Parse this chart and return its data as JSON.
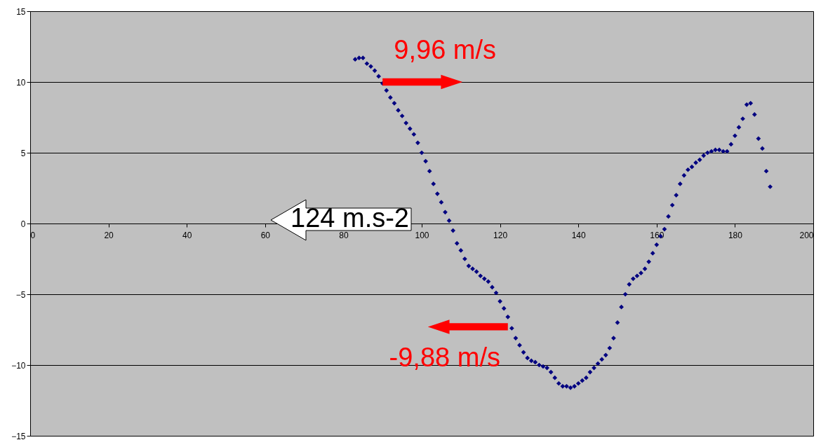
{
  "chart_data": {
    "type": "scatter",
    "x": [
      83,
      84,
      85,
      86,
      87,
      88,
      89,
      90,
      91,
      92,
      93,
      94,
      95,
      96,
      97,
      98,
      99,
      100,
      101,
      102,
      103,
      104,
      105,
      106,
      107,
      108,
      109,
      110,
      111,
      112,
      113,
      114,
      115,
      116,
      117,
      118,
      119,
      120,
      121,
      122,
      123,
      124,
      125,
      126,
      127,
      128,
      129,
      130,
      131,
      132,
      133,
      134,
      135,
      136,
      137,
      138,
      139,
      140,
      141,
      142,
      143,
      144,
      145,
      146,
      147,
      148,
      149,
      150,
      151,
      152,
      153,
      154,
      155,
      156,
      157,
      158,
      159,
      160,
      161,
      162,
      163,
      164,
      165,
      166,
      167,
      168,
      169,
      170,
      171,
      172,
      173,
      174,
      175,
      176,
      177,
      178,
      179,
      180,
      181,
      182,
      183,
      184,
      185,
      186,
      187,
      188,
      189
    ],
    "series": [
      {
        "color": "#000080",
        "values": [
          11.6,
          11.7,
          11.7,
          11.3,
          11.1,
          10.8,
          10.4,
          9.9,
          9.4,
          8.9,
          8.5,
          8.0,
          7.6,
          7.1,
          6.7,
          6.3,
          5.7,
          5.0,
          4.4,
          3.7,
          2.8,
          2.1,
          1.5,
          0.8,
          0.2,
          -0.5,
          -1.4,
          -1.9,
          -2.5,
          -3.0,
          -3.2,
          -3.4,
          -3.7,
          -3.9,
          -4.1,
          -4.5,
          -4.9,
          -5.5,
          -6.0,
          -6.6,
          -7.4,
          -8.1,
          -8.6,
          -9.1,
          -9.5,
          -9.7,
          -9.8,
          -10.0,
          -10.1,
          -10.2,
          -10.5,
          -10.9,
          -11.3,
          -11.5,
          -11.5,
          -11.6,
          -11.5,
          -11.3,
          -11.1,
          -10.9,
          -10.5,
          -10.2,
          -9.9,
          -9.6,
          -9.3,
          -8.8,
          -8.1,
          -7.0,
          -5.9,
          -5.0,
          -4.3,
          -3.9,
          -3.7,
          -3.5,
          -3.2,
          -2.7,
          -2.1,
          -1.5,
          -0.9,
          -0.4,
          0.5,
          1.3,
          2.0,
          2.8,
          3.4,
          3.8,
          4.0,
          4.3,
          4.5,
          4.8,
          5.0,
          5.1,
          5.2,
          5.2,
          5.1,
          5.1,
          5.6,
          6.2,
          6.8,
          7.4,
          8.4,
          8.5,
          7.7,
          6.0,
          5.3,
          3.7,
          2.6
        ]
      }
    ],
    "xlim": [
      0,
      200
    ],
    "xticks": [
      0,
      20,
      40,
      60,
      80,
      100,
      120,
      140,
      160,
      180,
      200
    ],
    "ylim": [
      -15,
      15
    ],
    "yticks": [
      -15,
      -10,
      -5,
      0,
      5,
      10,
      15
    ],
    "grid": "y",
    "marker": "diamond",
    "annotations": [
      {
        "text": "9,96 m/s",
        "x": 90,
        "y": 10
      },
      {
        "text": "-9,88 m/s",
        "x": 122,
        "y": -7.3
      },
      "124 m.s-2"
    ]
  }
}
